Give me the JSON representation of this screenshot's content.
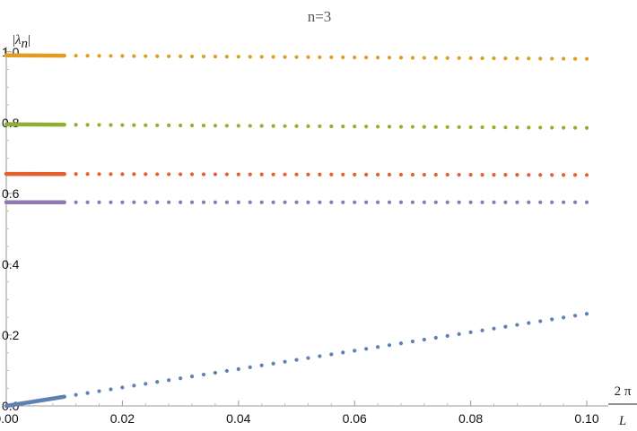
{
  "chart_data": {
    "type": "scatter",
    "title": "n=3",
    "ylabel": {
      "bar_left": "|",
      "symbol": "λ",
      "subscript": "n",
      "bar_right": "|"
    },
    "xlabel": {
      "numerator": "2 π",
      "denominator": "L"
    },
    "xlim": [
      0,
      0.1
    ],
    "ylim": [
      0,
      1.05
    ],
    "x_ticks": [
      0.0,
      0.02,
      0.04,
      0.06,
      0.08,
      0.1
    ],
    "x_tick_labels": [
      "0.00",
      "0.02",
      "0.04",
      "0.06",
      "0.08",
      "0.10"
    ],
    "y_ticks": [
      0.0,
      0.2,
      0.4,
      0.6,
      0.8,
      1.0
    ],
    "y_tick_labels": [
      "0.0",
      "0.2",
      "0.4",
      "0.6",
      "0.8",
      "1.0"
    ],
    "grid": false,
    "dense_region_end_x": 0.01,
    "sparse_step_x": 0.002,
    "series": [
      {
        "color": "#E09D22",
        "y_start": 0.99,
        "y_end": 0.98
      },
      {
        "color": "#8EB131",
        "y_start": 0.795,
        "y_end": 0.785
      },
      {
        "color": "#E2612E",
        "y_start": 0.655,
        "y_end": 0.652
      },
      {
        "color": "#8F78B1",
        "y_start": 0.575,
        "y_end": 0.575
      },
      {
        "color": "#5E81B5",
        "y_start": 0.0,
        "y_end": 0.26
      }
    ]
  }
}
